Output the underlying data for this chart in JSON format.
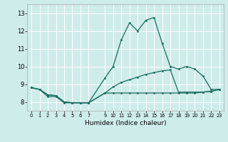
{
  "xlabel": "Humidex (Indice chaleur)",
  "bg_color": "#ceecea",
  "line_color": "#1a6b5e",
  "grid_color": "#ffffff",
  "xlim": [
    -0.5,
    23.5
  ],
  "ylim": [
    7.5,
    13.5
  ],
  "yticks": [
    8,
    9,
    10,
    11,
    12,
    13
  ],
  "xtick_positions": [
    0,
    1,
    2,
    3,
    4,
    5,
    6,
    7,
    9,
    10,
    11,
    12,
    13,
    14,
    15,
    16,
    17,
    18,
    19,
    20,
    21,
    22,
    23
  ],
  "line1_x": [
    0,
    1,
    2,
    3,
    4,
    5,
    6,
    7,
    9,
    10,
    11,
    12,
    13,
    14,
    15,
    16,
    17,
    18,
    19,
    20,
    21,
    22,
    23
  ],
  "line1_y": [
    8.8,
    8.7,
    8.4,
    8.35,
    8.0,
    7.95,
    7.95,
    7.95,
    9.35,
    10.0,
    11.5,
    12.45,
    12.0,
    12.6,
    12.75,
    11.3,
    10.0,
    9.85,
    10.0,
    9.85,
    9.45,
    8.7,
    8.7
  ],
  "line2_x": [
    0,
    1,
    2,
    3,
    4,
    5,
    6,
    7,
    9,
    10,
    11,
    12,
    13,
    14,
    15,
    16,
    17,
    18,
    19,
    20,
    21,
    22,
    23
  ],
  "line2_y": [
    8.8,
    8.7,
    8.4,
    8.35,
    8.0,
    7.95,
    7.95,
    7.95,
    8.5,
    8.85,
    9.1,
    9.25,
    9.4,
    9.55,
    9.65,
    9.75,
    9.8,
    8.55,
    8.55,
    8.55,
    8.55,
    8.6,
    8.7
  ],
  "line3_x": [
    0,
    1,
    2,
    3,
    4,
    5,
    6,
    7,
    9,
    10,
    11,
    12,
    13,
    14,
    15,
    16,
    17,
    18,
    19,
    20,
    21,
    22,
    23
  ],
  "line3_y": [
    8.8,
    8.7,
    8.3,
    8.3,
    7.95,
    7.95,
    7.95,
    7.95,
    8.5,
    8.5,
    8.5,
    8.5,
    8.5,
    8.5,
    8.5,
    8.5,
    8.5,
    8.5,
    8.5,
    8.5,
    8.55,
    8.6,
    8.7
  ]
}
